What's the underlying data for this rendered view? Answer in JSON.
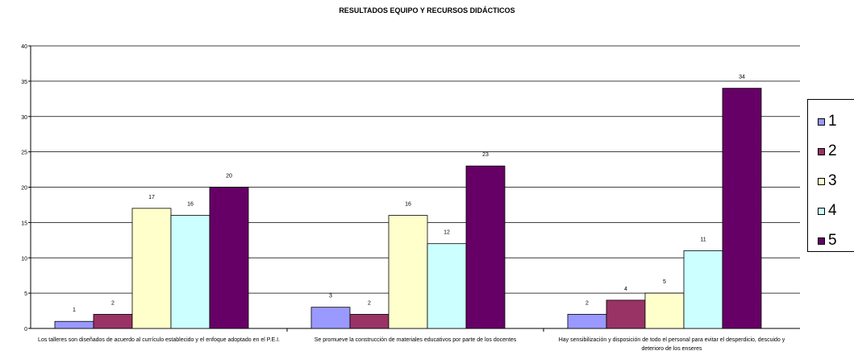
{
  "chart_data": {
    "type": "bar",
    "title": "RESULTADOS EQUIPO Y RECURSOS DIDÁCTICOS",
    "categories": [
      "Los talleres son diseñados de acuerdo al currículo establecido y el enfoque adoptado en el    P.E.I.",
      "Se promueve la construcción de materiales  educativos por parte de los docentes",
      "Hay sensibilización y disposición de todo el personal  para evitar  el desperdicio, descuido  y    deterioro  de los enseres"
    ],
    "series": [
      {
        "name": "1",
        "values": [
          1,
          3,
          2
        ],
        "color": "#9999ff"
      },
      {
        "name": "2",
        "values": [
          2,
          2,
          4
        ],
        "color": "#993366"
      },
      {
        "name": "3",
        "values": [
          17,
          16,
          5
        ],
        "color": "#ffffcc"
      },
      {
        "name": "4",
        "values": [
          16,
          12,
          11
        ],
        "color": "#ccffff"
      },
      {
        "name": "5",
        "values": [
          20,
          23,
          34
        ],
        "color": "#660066"
      }
    ],
    "ylim": [
      0,
      40
    ],
    "yticks": [
      0,
      5,
      10,
      15,
      20,
      25,
      30,
      35,
      40
    ],
    "grid": true,
    "legend_position": "right"
  }
}
